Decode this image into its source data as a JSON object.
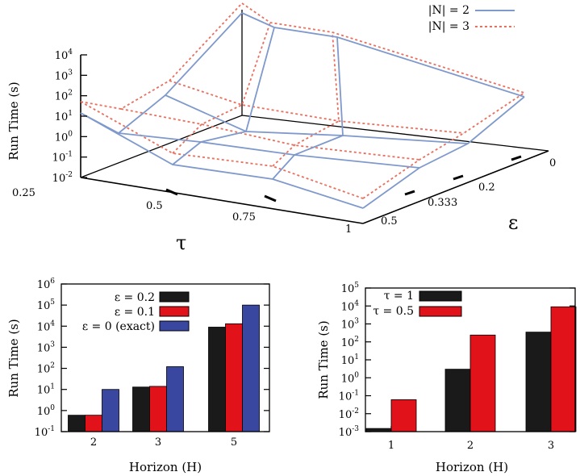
{
  "chart_data": [
    {
      "type": "surface3d",
      "zlabel": "Run Time (s)",
      "xlabel": "τ",
      "ylabel": "ε",
      "x_ticks": [
        "0.25",
        "0.5",
        "0.75",
        "1"
      ],
      "y_ticks": [
        "0.5",
        "0.333",
        "0.2",
        "0"
      ],
      "z_tick_exponents": [
        "-2",
        "-1",
        "0",
        "1",
        "2",
        "3",
        "4"
      ],
      "z_tick_base": "10",
      "zlim_log10": [
        -2,
        4
      ],
      "series": [
        {
          "name": "|N| = 2",
          "color": "#7f99cc",
          "style": "solid"
        },
        {
          "name": "|N| = 3",
          "color": "#e8705f",
          "style": "dotted"
        }
      ]
    },
    {
      "type": "bar",
      "scale": "log",
      "xlabel": "Horizon (H)",
      "ylabel": "Run Time (s)",
      "categories": [
        "2",
        "3",
        "5"
      ],
      "ylim_log10": [
        -1,
        6
      ],
      "y_tick_exponents": [
        "-1",
        "0",
        "1",
        "2",
        "3",
        "4",
        "5",
        "6"
      ],
      "y_tick_base": "10",
      "series": [
        {
          "name": "ε = 0.2",
          "color": "#1a1a1a",
          "values": [
            0.6,
            13,
            9000
          ]
        },
        {
          "name": "ε = 0.1",
          "color": "#e2121b",
          "values": [
            0.6,
            14,
            13000
          ]
        },
        {
          "name": "ε = 0 (exact)",
          "color": "#3a47a0",
          "values": [
            10,
            120,
            100000
          ]
        }
      ]
    },
    {
      "type": "bar",
      "scale": "log",
      "xlabel": "Horizon (H)",
      "ylabel": "Run Time (s)",
      "categories": [
        "1",
        "2",
        "3"
      ],
      "ylim_log10": [
        -3,
        5
      ],
      "y_tick_exponents": [
        "-3",
        "-2",
        "-1",
        "0",
        "1",
        "2",
        "3",
        "4",
        "5"
      ],
      "y_tick_base": "10",
      "series": [
        {
          "name": "τ = 1",
          "color": "#1a1a1a",
          "values": [
            0.0015,
            3,
            350
          ]
        },
        {
          "name": "τ = 0.5",
          "color": "#e2121b",
          "values": [
            0.06,
            240,
            9000
          ]
        }
      ]
    }
  ]
}
